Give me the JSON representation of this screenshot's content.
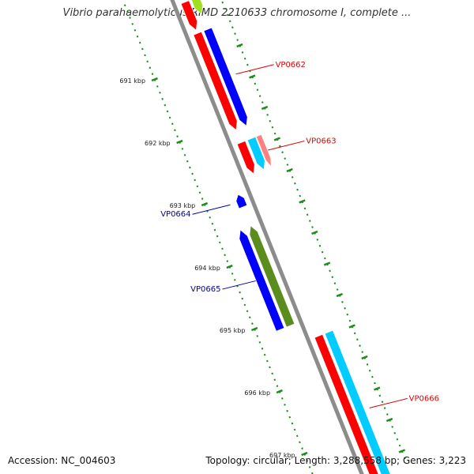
{
  "title": "Vibrio parahaemolyticus RIMD 2210633 chromosome I, complete ...",
  "footer": {
    "accession": "Accession: NC_004603",
    "summary": "Topology: circular; Length: 3,288,558 bp; Genes: 3,223"
  },
  "colors": {
    "backbone": "#8c8c8c",
    "ruler": "#1e8c1e",
    "red": "#ff0000",
    "blue": "#0000ff",
    "cyan": "#00ccff",
    "pink": "#ff8080",
    "olive": "#5a8c1e",
    "lime": "#a0e020",
    "forward_label": "#dd0000",
    "reverse_label": "#0000aa"
  },
  "ruler": {
    "unit": "kbp",
    "ticks": [
      {
        "kbp": 691,
        "label": "691 kbp"
      },
      {
        "kbp": 692,
        "label": "692 kbp"
      },
      {
        "kbp": 693,
        "label": "693 kbp"
      },
      {
        "kbp": 694,
        "label": "694 kbp"
      },
      {
        "kbp": 695,
        "label": "695 kbp"
      },
      {
        "kbp": 696,
        "label": "696 kbp"
      },
      {
        "kbp": 697,
        "label": "697 kbp"
      }
    ]
  },
  "genes": [
    {
      "id": "top-partial",
      "strand": "+",
      "start": 690.1,
      "end": 690.55,
      "color": "red"
    },
    {
      "id": "top-partial-2",
      "strand": "+",
      "start": 690.1,
      "end": 690.35,
      "color": "lime"
    },
    {
      "id": "VP0662",
      "strand": "+",
      "start": 690.6,
      "end": 692.15,
      "color": "red",
      "label": "VP0662"
    },
    {
      "id": "VP0662-b",
      "strand": "+",
      "start": 690.6,
      "end": 692.15,
      "color": "blue"
    },
    {
      "id": "VP0663",
      "strand": "+",
      "start": 692.35,
      "end": 692.85,
      "color": "red",
      "label": "VP0663"
    },
    {
      "id": "VP0663-b",
      "strand": "+",
      "start": 692.35,
      "end": 692.85,
      "color": "cyan"
    },
    {
      "id": "VP0663-c",
      "strand": "+",
      "start": 692.35,
      "end": 692.85,
      "color": "pink"
    },
    {
      "id": "VP0664",
      "strand": "-",
      "start": 693.05,
      "end": 693.25,
      "color": "blue",
      "label": "VP0664"
    },
    {
      "id": "VP0665",
      "strand": "-",
      "start": 693.55,
      "end": 695.15,
      "color": "olive",
      "label": "VP0665"
    },
    {
      "id": "VP0665-b",
      "strand": "-",
      "start": 693.55,
      "end": 695.15,
      "color": "blue"
    },
    {
      "id": "VP0666",
      "strand": "+",
      "start": 695.45,
      "end": 698.0,
      "color": "red",
      "label": "VP0666"
    },
    {
      "id": "VP0666-b",
      "strand": "+",
      "start": 695.45,
      "end": 698.0,
      "color": "cyan"
    }
  ]
}
